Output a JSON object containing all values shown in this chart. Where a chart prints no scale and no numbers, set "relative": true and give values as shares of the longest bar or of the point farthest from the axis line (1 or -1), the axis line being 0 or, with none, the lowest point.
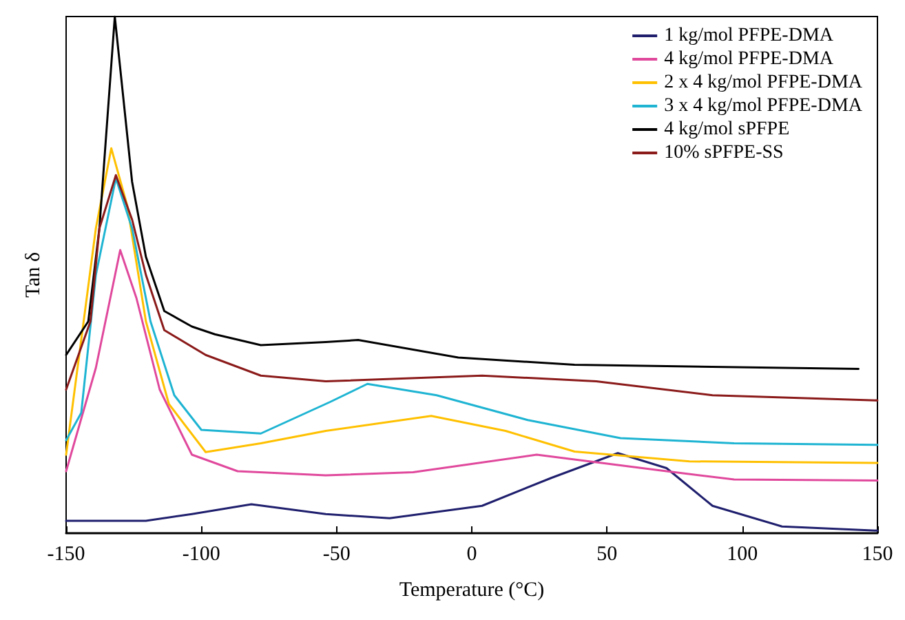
{
  "chart_data": {
    "type": "line",
    "xlabel": "Temperature (°C)",
    "ylabel": "Tan δ",
    "relative": true,
    "xlim": [
      -150,
      150
    ],
    "xticks": [
      -150,
      -100,
      -50,
      0,
      50,
      100,
      150
    ],
    "grid": false,
    "legend": "top right",
    "marker": "none",
    "line_style": "solid",
    "series": [
      {
        "name": "1 kg/mol PFPE-DMA",
        "color": "#1f1f6e",
        "x": [
          -150,
          -120.5,
          -103.5,
          -81.5,
          -54,
          -30.4,
          3.8,
          29.4,
          54,
          72,
          89,
          114.7,
          150
        ],
        "values": [
          0.024,
          0.024,
          0.037,
          0.056,
          0.037,
          0.029,
          0.053,
          0.107,
          0.155,
          0.126,
          0.053,
          0.013,
          0.005
        ]
      },
      {
        "name": "4 kg/mol PFPE-DMA",
        "color": "#e0489c",
        "x": [
          -150,
          -139,
          -130,
          -124,
          -115.4,
          -103.5,
          -86.6,
          -54,
          -21.7,
          24,
          72,
          97,
          150
        ],
        "values": [
          0.12,
          0.32,
          0.548,
          0.455,
          0.278,
          0.152,
          0.12,
          0.112,
          0.118,
          0.152,
          0.12,
          0.104,
          0.102
        ]
      },
      {
        "name": "2 x 4 kg/mol PFPE-DMA",
        "color": "#ffc000",
        "x": [
          -150,
          -139,
          -133.3,
          -127.4,
          -120.5,
          -112,
          -98.4,
          -78,
          -54,
          -15,
          12.5,
          38,
          80.5,
          150
        ],
        "values": [
          0.152,
          0.59,
          0.745,
          0.634,
          0.41,
          0.25,
          0.157,
          0.174,
          0.198,
          0.227,
          0.198,
          0.158,
          0.139,
          0.136
        ]
      },
      {
        "name": "3 x 4 kg/mol PFPE-DMA",
        "color": "#1eb4d2",
        "x": [
          -150,
          -144.4,
          -139,
          -131.6,
          -125.6,
          -118.8,
          -110,
          -100,
          -78,
          -52.4,
          -38.6,
          -13,
          20.7,
          55,
          97,
          150
        ],
        "values": [
          0.18,
          0.233,
          0.5,
          0.687,
          0.59,
          0.41,
          0.267,
          0.2,
          0.193,
          0.254,
          0.289,
          0.267,
          0.219,
          0.184,
          0.174,
          0.171
        ]
      },
      {
        "name": "4 kg/mol sPFPE",
        "color": "#000000",
        "x": [
          -150,
          -141.8,
          -137.7,
          -132,
          -125.6,
          -120.5,
          -113.7,
          -103.5,
          -95,
          -78,
          -54,
          -42,
          -5,
          38,
          143
        ],
        "values": [
          0.345,
          0.41,
          0.59,
          1,
          0.68,
          0.535,
          0.43,
          0.4,
          0.385,
          0.364,
          0.37,
          0.374,
          0.34,
          0.326,
          0.318
        ]
      },
      {
        "name": "10% sPFPE-SS",
        "color": "#8b1a1a",
        "x": [
          -150,
          -141,
          -137.7,
          -131.6,
          -125.6,
          -120.5,
          -113.7,
          -98.4,
          -78,
          -54,
          3.8,
          46,
          89,
          150
        ],
        "values": [
          0.278,
          0.41,
          0.59,
          0.693,
          0.607,
          0.5,
          0.393,
          0.345,
          0.305,
          0.294,
          0.305,
          0.294,
          0.267,
          0.257
        ]
      }
    ]
  }
}
